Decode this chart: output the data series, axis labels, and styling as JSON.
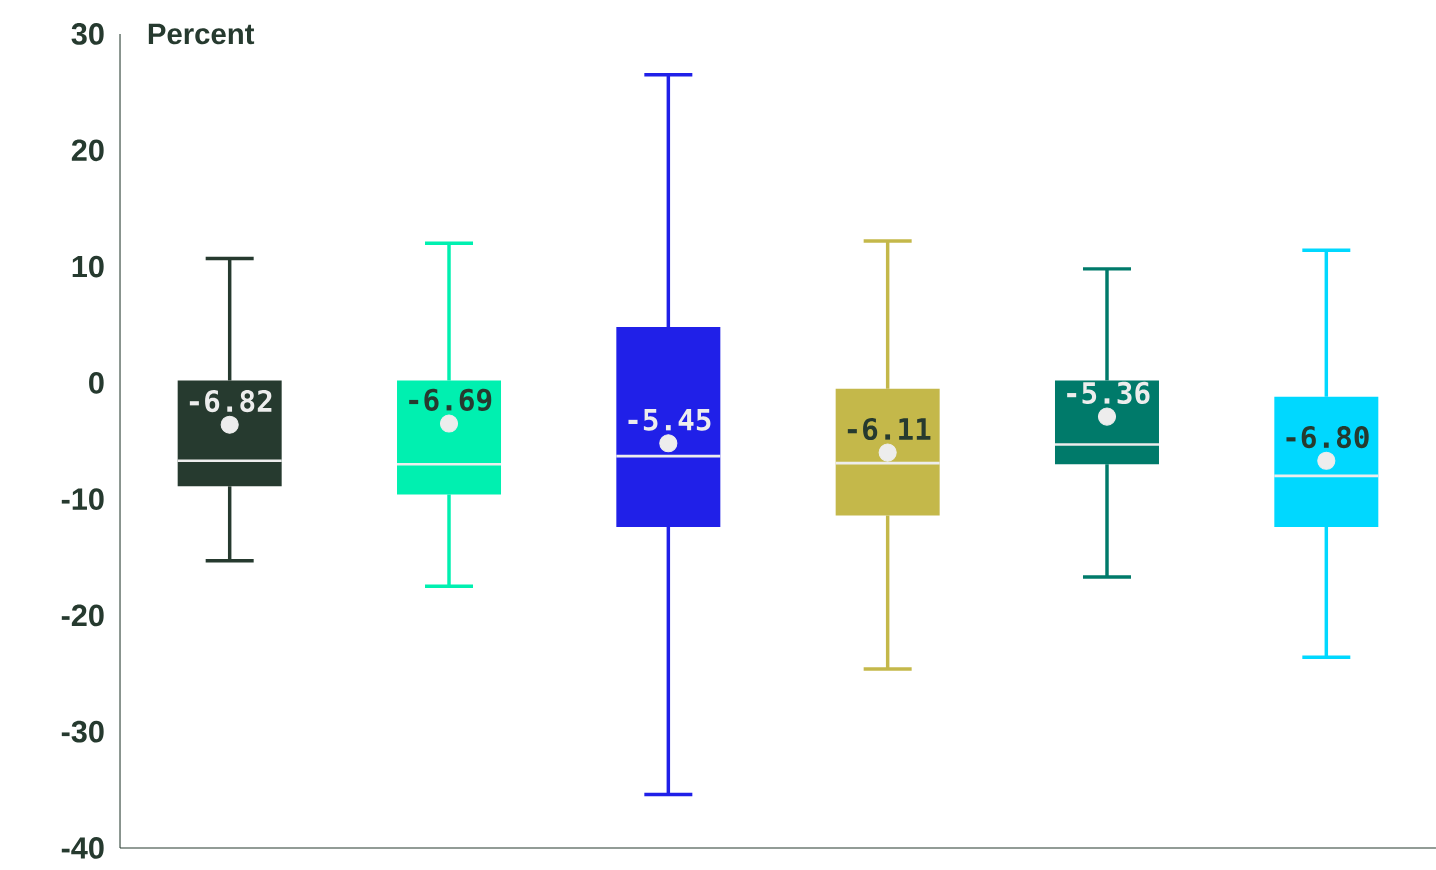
{
  "chart_data": {
    "type": "box",
    "ylabel": "Percent",
    "categories": [
      null,
      null,
      null,
      null,
      null,
      null
    ],
    "colors": [
      "#263a2f",
      "#00f0b0",
      "#2020e8",
      "#c4b84a",
      "#007a6a",
      "#00d8ff"
    ],
    "boxes": [
      {
        "low": -15.3,
        "q1": -8.9,
        "median": -6.7,
        "q3": 0.2,
        "high": 10.7,
        "mean": -3.6
      },
      {
        "low": -17.5,
        "q1": -9.6,
        "median": -7.0,
        "q3": 0.2,
        "high": 12.0,
        "mean": -3.5
      },
      {
        "low": -35.4,
        "q1": -12.4,
        "median": -6.3,
        "q3": 4.8,
        "high": 26.5,
        "mean": -5.2
      },
      {
        "low": -24.6,
        "q1": -11.4,
        "median": -6.9,
        "q3": -0.5,
        "high": 12.2,
        "mean": -6.0
      },
      {
        "low": -16.7,
        "q1": -7.0,
        "median": -5.3,
        "q3": 0.2,
        "high": 9.8,
        "mean": -2.9
      },
      {
        "low": -23.6,
        "q1": -12.4,
        "median": -8.0,
        "q3": -1.2,
        "high": 11.4,
        "mean": -6.7
      }
    ],
    "annotations": [
      "-6.82",
      "-6.69",
      "-5.45",
      "-6.11",
      "-5.36",
      "-6.80"
    ],
    "ylim": [
      -40,
      30
    ],
    "yticks": [
      -40,
      -30,
      -20,
      -10,
      0,
      10,
      20,
      30
    ],
    "grid": false
  }
}
